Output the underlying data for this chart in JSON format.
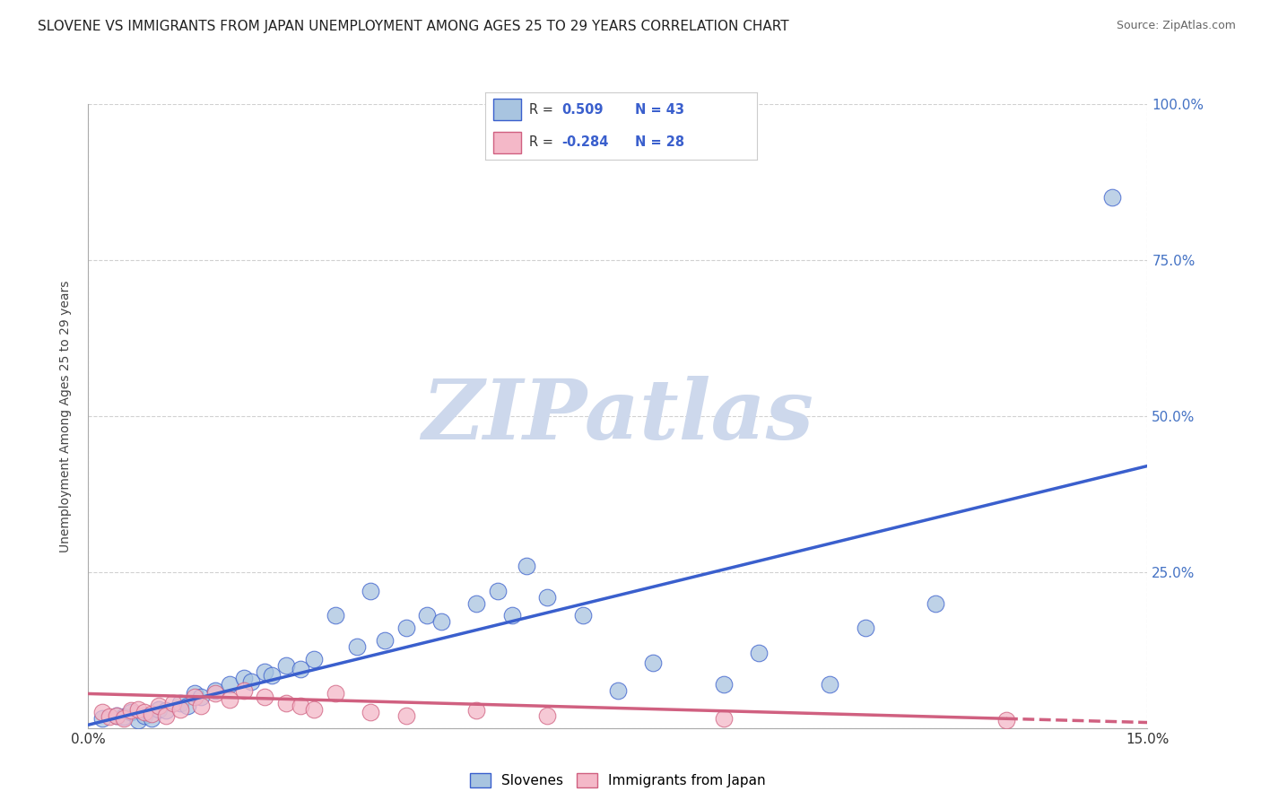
{
  "title": "SLOVENE VS IMMIGRANTS FROM JAPAN UNEMPLOYMENT AMONG AGES 25 TO 29 YEARS CORRELATION CHART",
  "source": "Source: ZipAtlas.com",
  "watermark": "ZIPatlas",
  "slovene_color": "#a8c4e0",
  "immigrant_color": "#f4b8c8",
  "line_blue": "#3a5fcd",
  "line_pink": "#d06080",
  "slovene_scatter": [
    [
      0.2,
      1.5
    ],
    [
      0.4,
      2.0
    ],
    [
      0.5,
      1.8
    ],
    [
      0.6,
      2.5
    ],
    [
      0.7,
      1.2
    ],
    [
      0.8,
      2.0
    ],
    [
      0.9,
      1.5
    ],
    [
      1.0,
      3.0
    ],
    [
      1.1,
      2.8
    ],
    [
      1.3,
      4.0
    ],
    [
      1.4,
      3.5
    ],
    [
      1.5,
      5.5
    ],
    [
      1.6,
      5.0
    ],
    [
      1.8,
      6.0
    ],
    [
      2.0,
      7.0
    ],
    [
      2.2,
      8.0
    ],
    [
      2.3,
      7.5
    ],
    [
      2.5,
      9.0
    ],
    [
      2.6,
      8.5
    ],
    [
      2.8,
      10.0
    ],
    [
      3.0,
      9.5
    ],
    [
      3.2,
      11.0
    ],
    [
      3.5,
      18.0
    ],
    [
      3.8,
      13.0
    ],
    [
      4.0,
      22.0
    ],
    [
      4.2,
      14.0
    ],
    [
      4.5,
      16.0
    ],
    [
      4.8,
      18.0
    ],
    [
      5.0,
      17.0
    ],
    [
      5.5,
      20.0
    ],
    [
      5.8,
      22.0
    ],
    [
      6.0,
      18.0
    ],
    [
      6.5,
      21.0
    ],
    [
      7.0,
      18.0
    ],
    [
      7.5,
      6.0
    ],
    [
      8.0,
      10.5
    ],
    [
      9.0,
      7.0
    ],
    [
      9.5,
      12.0
    ],
    [
      10.5,
      7.0
    ],
    [
      11.0,
      16.0
    ],
    [
      12.0,
      20.0
    ],
    [
      14.5,
      85.0
    ],
    [
      6.2,
      26.0
    ]
  ],
  "immigrant_scatter": [
    [
      0.2,
      2.5
    ],
    [
      0.3,
      1.8
    ],
    [
      0.4,
      2.0
    ],
    [
      0.5,
      1.5
    ],
    [
      0.6,
      2.8
    ],
    [
      0.7,
      3.0
    ],
    [
      0.8,
      2.5
    ],
    [
      0.9,
      2.2
    ],
    [
      1.0,
      3.5
    ],
    [
      1.1,
      2.0
    ],
    [
      1.2,
      4.0
    ],
    [
      1.3,
      3.0
    ],
    [
      1.5,
      5.0
    ],
    [
      1.6,
      3.5
    ],
    [
      1.8,
      5.5
    ],
    [
      2.0,
      4.5
    ],
    [
      2.2,
      6.0
    ],
    [
      2.5,
      5.0
    ],
    [
      2.8,
      4.0
    ],
    [
      3.0,
      3.5
    ],
    [
      3.2,
      3.0
    ],
    [
      3.5,
      5.5
    ],
    [
      4.0,
      2.5
    ],
    [
      4.5,
      2.0
    ],
    [
      5.5,
      2.8
    ],
    [
      6.5,
      2.0
    ],
    [
      9.0,
      1.5
    ],
    [
      13.0,
      1.2
    ]
  ],
  "xmin": 0.0,
  "xmax": 15.0,
  "ymin": 0.0,
  "ymax": 100.0,
  "blue_line_x0": 0.0,
  "blue_line_y0": 0.5,
  "blue_line_x1": 15.0,
  "blue_line_y1": 42.0,
  "pink_line_x0": 0.0,
  "pink_line_y0": 5.5,
  "pink_line_x1": 13.0,
  "pink_line_y1": 1.5,
  "pink_dash_x0": 13.0,
  "pink_dash_x1": 15.0,
  "grid_color": "#cccccc",
  "background_color": "#ffffff",
  "watermark_color": "#cdd8ec",
  "title_fontsize": 11,
  "source_fontsize": 9,
  "ylabel": "Unemployment Among Ages 25 to 29 years",
  "ytick_vals": [
    0,
    25,
    50,
    75,
    100
  ],
  "ytick_labels": [
    "",
    "25.0%",
    "50.0%",
    "75.0%",
    "100.0%"
  ],
  "xtick_vals": [
    0,
    15
  ],
  "xtick_labels": [
    "0.0%",
    "15.0%"
  ],
  "legend_r1": "R =  0.509",
  "legend_n1": "N = 43",
  "legend_r2": "R = -0.284",
  "legend_n2": "N = 28"
}
